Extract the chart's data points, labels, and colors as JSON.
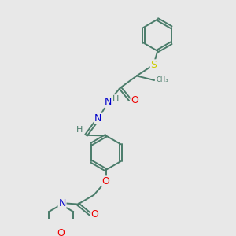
{
  "bg_color": "#e8e8e8",
  "bond_color": "#4a7c6a",
  "atom_colors": {
    "N": "#0000cc",
    "O": "#ee0000",
    "S": "#cccc00",
    "H": "#4a7c6a",
    "C": "#4a7c6a"
  },
  "font_size": 8.5,
  "line_width": 1.4,
  "title": ""
}
